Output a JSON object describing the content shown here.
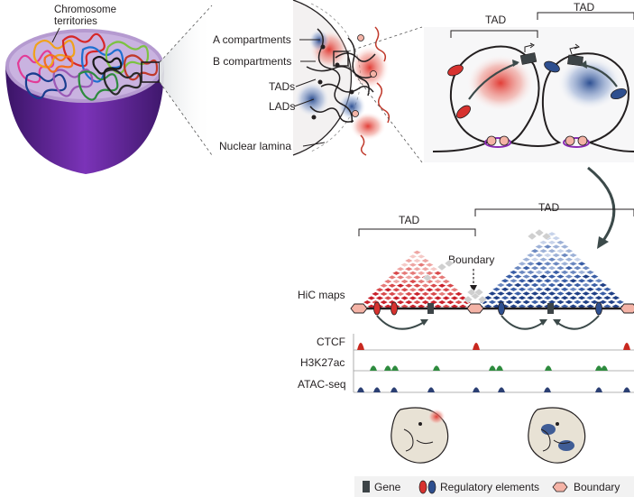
{
  "labels": {
    "chromosome_territories_1": "Chromosome",
    "chromosome_territories_2": "territories",
    "a_compartments": "A compartments",
    "b_compartments": "B compartments",
    "tads": "TADs",
    "lads": "LADs",
    "nuclear_lamina": "Nuclear lamina",
    "tad_left_top": "TAD",
    "tad_right_top": "TAD",
    "tad_hic_left": "TAD",
    "tad_hic_right": "TAD",
    "boundary": "Boundary",
    "hic_maps": "HiC maps"
  },
  "tracks": [
    {
      "label": "CTCF"
    },
    {
      "label": "H3K27ac"
    },
    {
      "label": "ATAC-seq"
    }
  ],
  "legend": {
    "gene": "Gene",
    "regulatory": "Regulatory elements",
    "boundary": "Boundary"
  },
  "colors": {
    "red": "#d7322f",
    "blue": "#2e4f8f",
    "ctcf": "#c8281f",
    "h3k27ac": "#2e8b3e",
    "atac": "#2b3f73",
    "gene": "#3d4447",
    "boundary": "#f4b3a6",
    "purple": "#7a2aa1"
  }
}
